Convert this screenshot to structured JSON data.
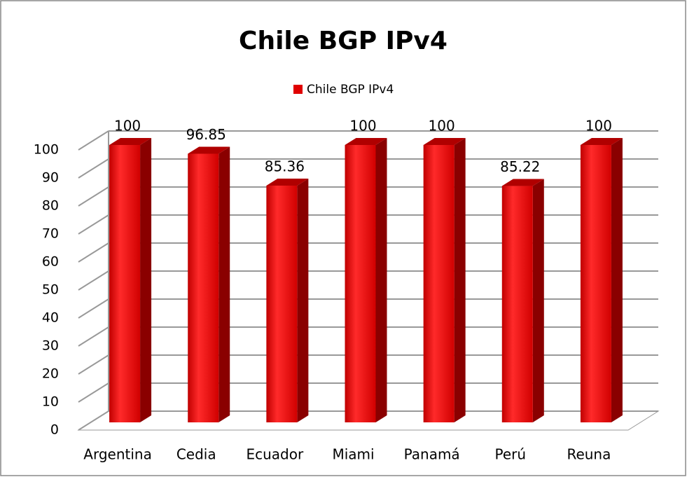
{
  "chart_data": {
    "type": "bar",
    "title": "Chile BGP IPv4",
    "categories": [
      "Argentina",
      "Cedia",
      "Ecuador",
      "Miami",
      "Panamá",
      "Perú",
      "Reuna"
    ],
    "series": [
      {
        "name": "Chile BGP IPv4",
        "color": "#e00000",
        "values": [
          100,
          96.85,
          85.36,
          100,
          100,
          85.22,
          100
        ]
      }
    ],
    "ylim": [
      0,
      100
    ],
    "yticks": [
      0,
      10,
      20,
      30,
      40,
      50,
      60,
      70,
      80,
      90,
      100
    ],
    "grid": true,
    "legend": "top"
  }
}
